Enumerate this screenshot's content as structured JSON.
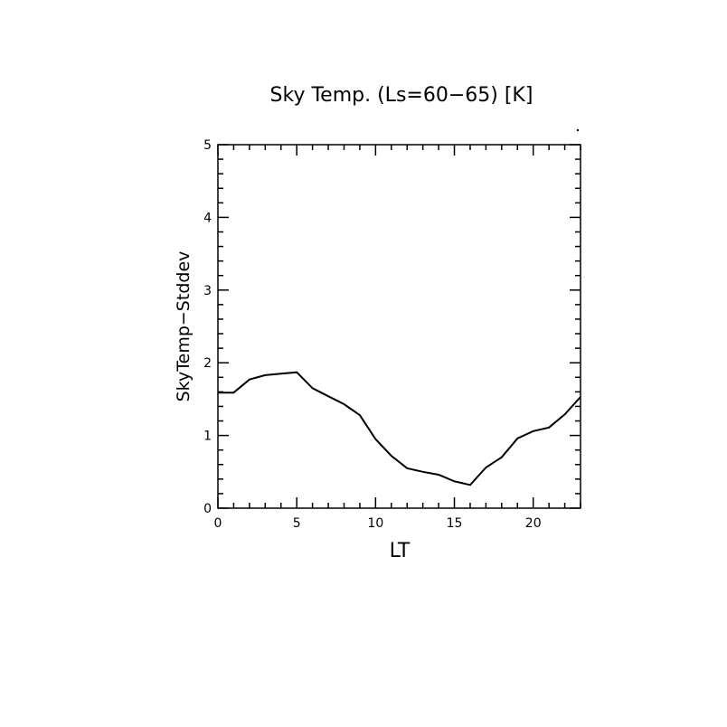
{
  "chart_data": {
    "type": "line",
    "title": "Sky Temp. (Ls=60−65) [K]",
    "xlabel": "LT",
    "ylabel": "SkyTemp−Stddev",
    "xlim": [
      0,
      23
    ],
    "ylim": [
      0,
      5
    ],
    "xticks": [
      "0",
      "5",
      "10",
      "15",
      "20"
    ],
    "yticks": [
      "0",
      "1",
      "2",
      "3",
      "4",
      "5"
    ],
    "grid": false,
    "line_color": "#000000",
    "series": [
      {
        "x": [
          0,
          1,
          2,
          3,
          4,
          5,
          6,
          7,
          8,
          9,
          10,
          11,
          12,
          13,
          14,
          15,
          16,
          17,
          18,
          19,
          20,
          21,
          22,
          23
        ],
        "values": [
          1.59,
          1.59,
          1.77,
          1.83,
          1.85,
          1.87,
          1.65,
          1.54,
          1.43,
          1.28,
          0.95,
          0.72,
          0.55,
          0.5,
          0.46,
          0.37,
          0.32,
          0.56,
          0.7,
          0.96,
          1.06,
          1.11,
          1.29,
          1.53
        ]
      }
    ]
  }
}
